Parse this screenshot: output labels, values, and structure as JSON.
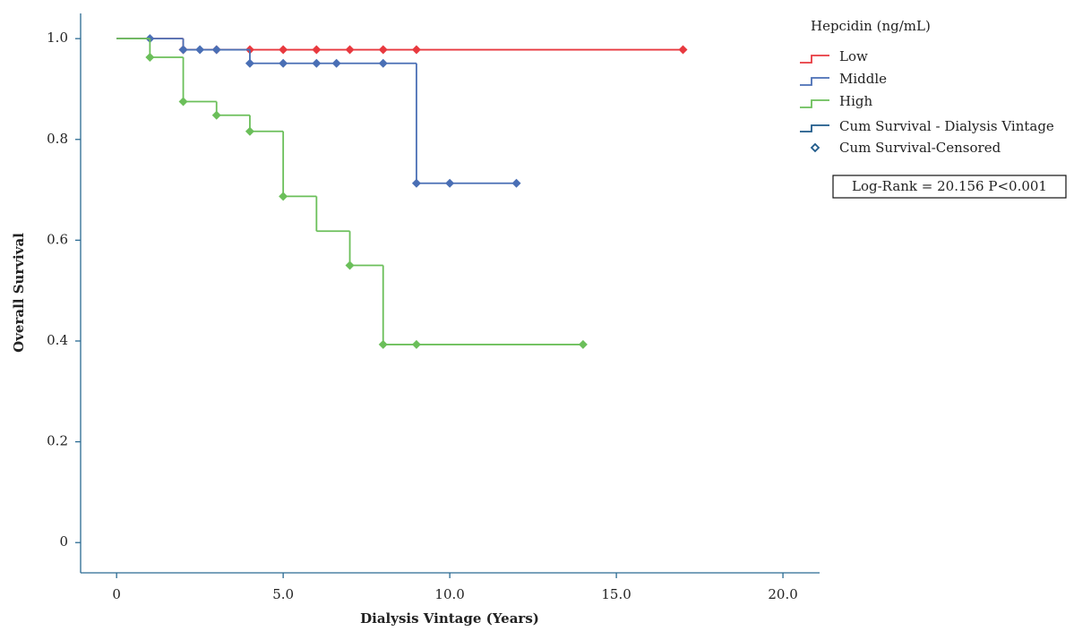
{
  "chart_data": {
    "type": "survival",
    "xlabel": "Dialysis Vintage (Years)",
    "ylabel": "Overall Survival",
    "xlim": [
      -1.08,
      21.1
    ],
    "ylim": [
      -0.06,
      1.05
    ],
    "xticks": [
      0,
      {
        "value": 5,
        "label": "5.0"
      },
      {
        "value": 10,
        "label": "10.0"
      },
      {
        "value": 15,
        "label": "15.0"
      },
      {
        "value": 20,
        "label": "20.0"
      }
    ],
    "yticks": [
      0,
      0.2,
      0.4,
      0.6,
      0.8,
      {
        "value": 1,
        "label": "1.0"
      }
    ],
    "legend_title": "Hepcidin (ng/mL)",
    "series": [
      {
        "name": "Low",
        "color": "#e8393f",
        "x": [
          0,
          2,
          17
        ],
        "values": [
          1.0,
          0.978,
          0.978
        ],
        "censored": {
          "x": [
            2,
            3,
            4,
            5,
            6,
            7,
            8,
            9,
            17
          ],
          "values": [
            0.978,
            0.978,
            0.978,
            0.978,
            0.978,
            0.978,
            0.978,
            0.978,
            0.978
          ]
        }
      },
      {
        "name": "Middle",
        "color": "#4a6fb5",
        "x": [
          0,
          2,
          4,
          9,
          12
        ],
        "values": [
          1.0,
          0.978,
          0.951,
          0.713,
          0.713
        ],
        "censored": {
          "x": [
            1,
            2,
            2.5,
            3,
            4,
            5,
            6,
            6.6,
            8,
            9,
            10,
            12
          ],
          "values": [
            1.0,
            0.978,
            0.978,
            0.978,
            0.951,
            0.951,
            0.951,
            0.951,
            0.951,
            0.713,
            0.713,
            0.713
          ]
        }
      },
      {
        "name": "High",
        "color": "#6bbf5a",
        "x": [
          0,
          1,
          2,
          3,
          4,
          5,
          6,
          7,
          8,
          14
        ],
        "values": [
          1.0,
          0.963,
          0.875,
          0.848,
          0.816,
          0.687,
          0.618,
          0.55,
          0.393,
          0.393
        ],
        "censored": {
          "x": [
            1,
            2,
            3,
            4,
            5,
            7,
            8,
            9,
            14
          ],
          "values": [
            0.963,
            0.875,
            0.848,
            0.816,
            0.687,
            0.55,
            0.393,
            0.393,
            0.393
          ]
        }
      }
    ],
    "legend_extra": [
      "Cum Survival - Dialysis Vintage",
      "Cum Survival-Censored"
    ],
    "annotation": "Log-Rank = 20.156 P<0.001"
  }
}
